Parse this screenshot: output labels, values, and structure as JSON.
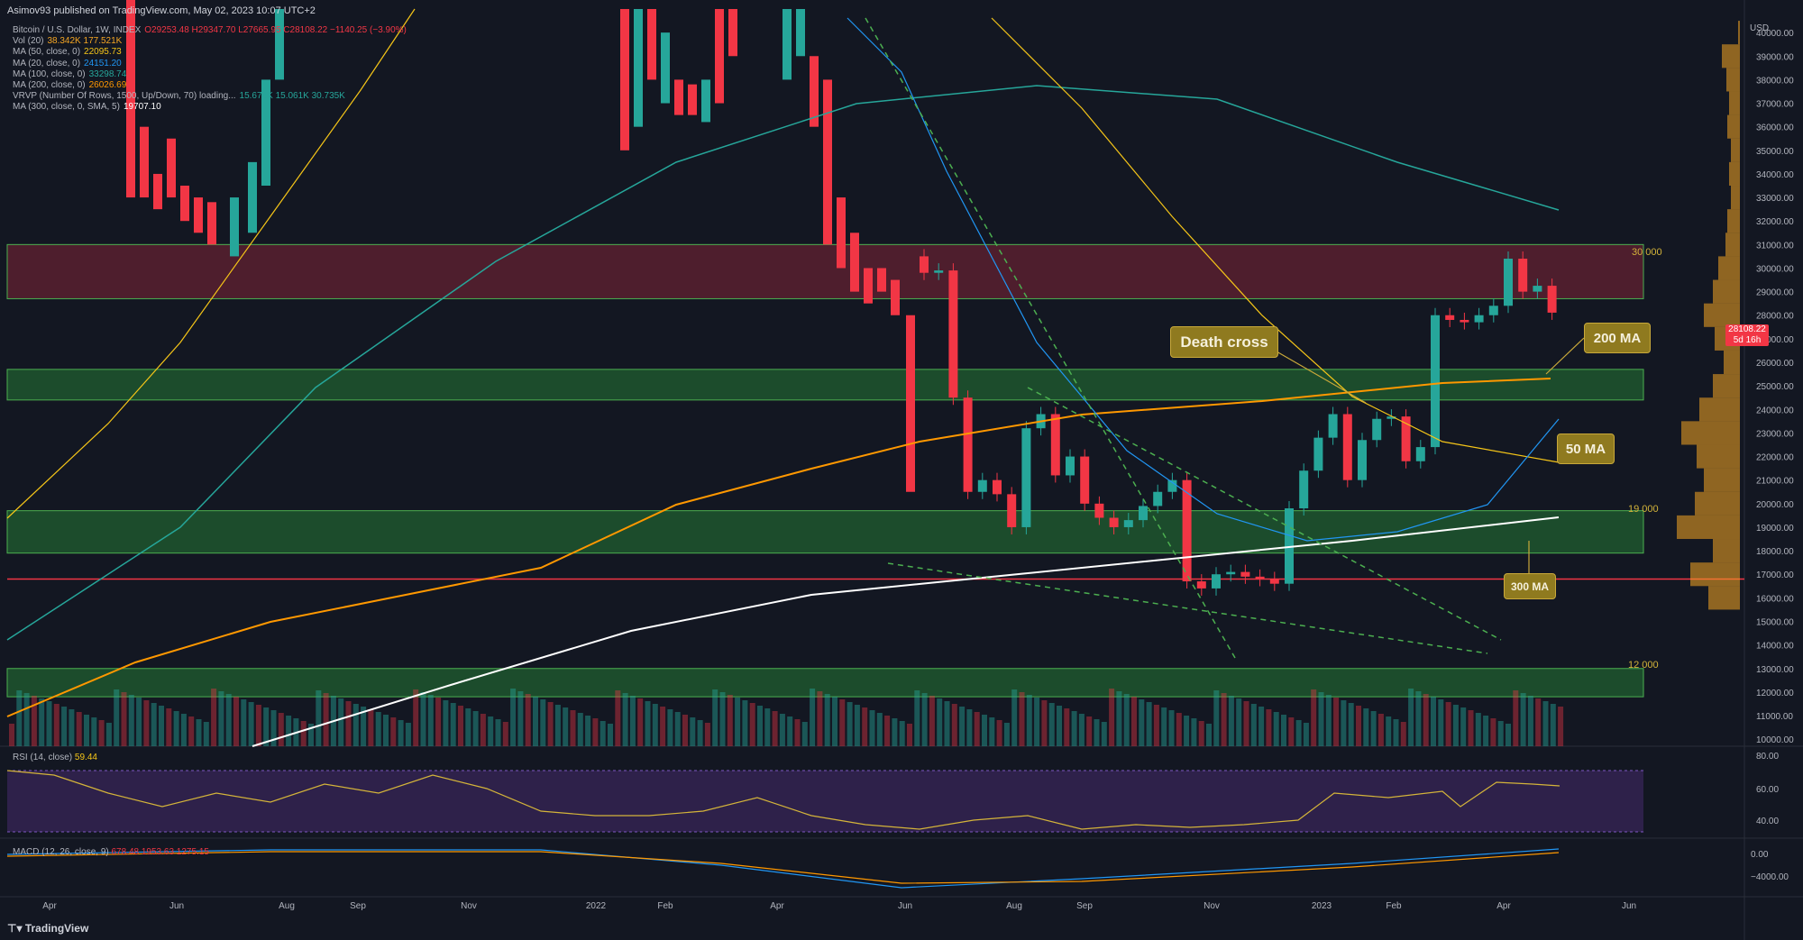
{
  "header": {
    "published": "Asimov93 published on TradingView.com, May 02, 2023 10:07 UTC+2",
    "currency": "USD",
    "brand": "TradingView"
  },
  "legend": [
    {
      "label": "Bitcoin / U.S. Dollar, 1W, INDEX",
      "value": "O29253.48 H29347.70 L27665.95 C28108.22 −1140.25 (−3.90%)",
      "color": "#f23645"
    },
    {
      "label": "Vol (20)",
      "value": "38.342K 177.521K",
      "color": "#f5a623"
    },
    {
      "label": "MA (50, close, 0)",
      "value": "22095.73",
      "color": "#f5c518"
    },
    {
      "label": "MA (20, close, 0)",
      "value": "24151.20",
      "color": "#2196f3"
    },
    {
      "label": "MA (100, close, 0)",
      "value": "33298.74",
      "color": "#26a69a"
    },
    {
      "label": "MA (200, close, 0)",
      "value": "26026.69",
      "color": "#ff9800"
    },
    {
      "label": "VRVP (Number Of Rows, 1500, Up/Down, 70) loading...",
      "value": "15.675K 15.061K 30.735K",
      "color": "#26a69a"
    },
    {
      "label": "MA (300, close, 0, SMA, 5)",
      "value": "19707.10",
      "color": "#ffffff"
    }
  ],
  "rsi_label": "RSI (14, close)",
  "rsi_value": "59.44",
  "macd_label": "MACD (12, 26, close, 9)",
  "macd_value": "678.48 1953.63 1275.15",
  "price_tag": {
    "price": "28108.22",
    "countdown": "5d 16h"
  },
  "colors": {
    "up": "#26a69a",
    "down": "#f23645",
    "background": "#131722",
    "callout": "#8f7a1f"
  },
  "annotations": {
    "death_cross": "Death cross",
    "ma200": "200 MA",
    "ma50": "50 MA",
    "ma300": "300 MA"
  },
  "zone_labels": [
    "30 000",
    "19 000",
    "12 000"
  ],
  "chart_data": {
    "type": "candlestick",
    "title": "Bitcoin / U.S. Dollar, 1W, INDEX",
    "price_axis": {
      "ticks": [
        40000,
        39000,
        38000,
        37000,
        36000,
        35000,
        34000,
        33000,
        32000,
        31000,
        30000,
        29000,
        28000,
        27000,
        26000,
        25000,
        24000,
        23000,
        22000,
        21000,
        20000,
        19000,
        18000,
        17000,
        16000,
        15000,
        14000,
        13000,
        12000,
        11000,
        10000
      ],
      "range": [
        9700,
        41000
      ]
    },
    "rsi_axis": {
      "ticks": [
        "80.00",
        "60.00",
        "40.00"
      ]
    },
    "macd_axis": {
      "ticks": [
        "0.00",
        "−4000.00"
      ]
    },
    "time_labels": [
      "Apr",
      "Jun",
      "Aug",
      "Sep",
      "Nov",
      "2022",
      "Feb",
      "Apr",
      "Jun",
      "Aug",
      "Sep",
      "Nov",
      "2023",
      "Feb",
      "Apr",
      "Jun"
    ],
    "candles_recent": {
      "comment_free": true,
      "open": [
        30500,
        29800,
        29900,
        24500,
        20500,
        21000,
        20400,
        19000,
        23200,
        23800,
        21200,
        22000,
        20000,
        19400,
        19000,
        19300,
        19900,
        20500,
        21000,
        16700,
        16400,
        17000,
        17100,
        16900,
        16800,
        16600,
        19800,
        21400,
        22800,
        23800,
        21000,
        22700,
        23600,
        23700,
        21800,
        22400,
        28000,
        27800,
        27700,
        28000,
        28400,
        30400,
        29000,
        29250
      ],
      "close": [
        29800,
        29900,
        24500,
        20500,
        21000,
        20400,
        19000,
        23200,
        23800,
        21200,
        22000,
        20000,
        19400,
        19000,
        19300,
        19900,
        20500,
        21000,
        16700,
        16400,
        17000,
        17100,
        16900,
        16800,
        16600,
        19800,
        21400,
        22800,
        23800,
        21000,
        22700,
        23600,
        23700,
        21800,
        22400,
        28000,
        27800,
        27700,
        28000,
        28400,
        30400,
        29000,
        29250,
        28108
      ]
    },
    "moving_averages": [
      {
        "name": "MA 50",
        "latest": 22095.73
      },
      {
        "name": "MA 20",
        "latest": 24151.2
      },
      {
        "name": "MA 100",
        "latest": 33298.74
      },
      {
        "name": "MA 200",
        "latest": 26026.69
      },
      {
        "name": "MA 300",
        "latest": 19707.1
      }
    ],
    "zones": [
      {
        "name": "resistance",
        "from": 28700,
        "to": 31000
      },
      {
        "name": "support",
        "from": 24400,
        "to": 25700
      },
      {
        "name": "support",
        "from": 17900,
        "to": 19700
      },
      {
        "name": "support",
        "from": 11800,
        "to": 13000
      }
    ],
    "horizontal_line": 16800,
    "rsi_latest": 59.44
  }
}
